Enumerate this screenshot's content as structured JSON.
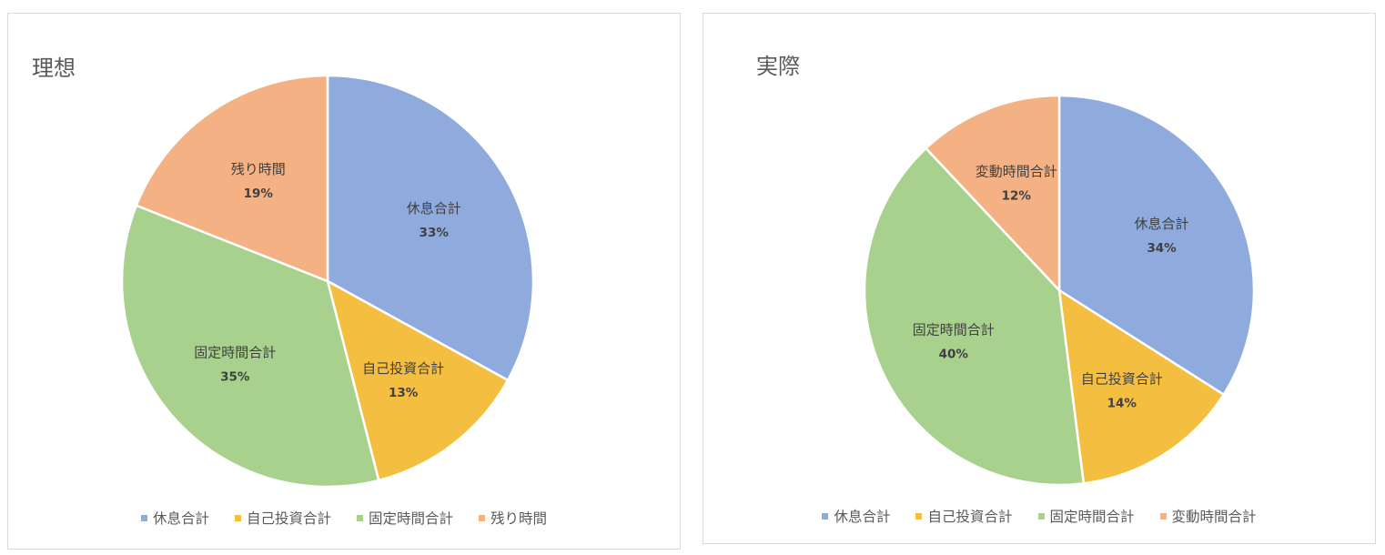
{
  "chart_data": [
    {
      "type": "pie",
      "title": "理想",
      "categories": [
        "休息合計",
        "自己投資合計",
        "固定時間合計",
        "残り時間"
      ],
      "values": [
        33,
        13,
        35,
        19
      ],
      "data_labels": [
        "33%",
        "13%",
        "35%",
        "19%"
      ],
      "colors": [
        "#8FAADC",
        "#F4BE41",
        "#A9D18E",
        "#F4B183"
      ],
      "start_angle": "12 o'clock",
      "direction": "clockwise",
      "legend": "bottom"
    },
    {
      "type": "pie",
      "title": "実際",
      "categories": [
        "休息合計",
        "自己投資合計",
        "固定時間合計",
        "変動時間合計"
      ],
      "values": [
        34,
        14,
        40,
        12
      ],
      "data_labels": [
        "34%",
        "14%",
        "40%",
        "12%"
      ],
      "colors": [
        "#8FAADC",
        "#F4BE41",
        "#A9D18E",
        "#F4B183"
      ],
      "start_angle": "12 o'clock",
      "direction": "clockwise",
      "legend": "bottom"
    }
  ]
}
